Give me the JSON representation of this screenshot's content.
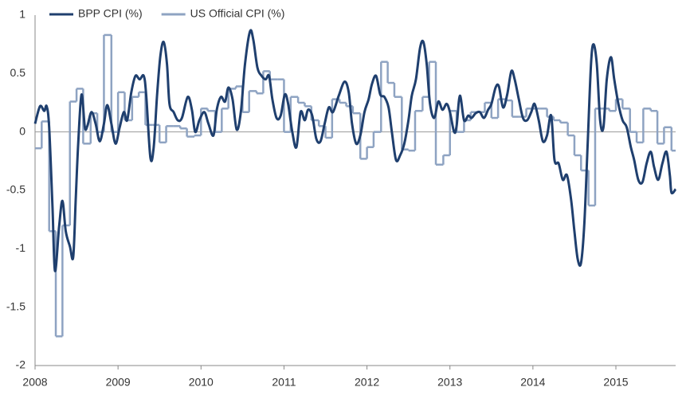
{
  "chart_data": {
    "type": "line",
    "legend": "top-left",
    "zero_line": true,
    "xlim": [
      2008,
      2015.72
    ],
    "xticks": [
      2008,
      2009,
      2010,
      2011,
      2012,
      2013,
      2014,
      2015
    ],
    "ylim": [
      -2,
      1
    ],
    "yticks": [
      -2,
      -1.5,
      -1,
      -0.5,
      0,
      0.5,
      1
    ],
    "series": [
      {
        "name": "BPP CPI (%)",
        "color": "#1f3f6e",
        "style": "smooth",
        "x": [
          2008,
          2008.06,
          2008.11,
          2008.14,
          2008.17,
          2008.21,
          2008.24,
          2008.29,
          2008.33,
          2008.37,
          2008.42,
          2008.46,
          2008.49,
          2008.52,
          2008.56,
          2008.6,
          2008.63,
          2008.68,
          2008.73,
          2008.78,
          2008.83,
          2008.87,
          2008.92,
          2008.97,
          2009.02,
          2009.07,
          2009.11,
          2009.16,
          2009.21,
          2009.26,
          2009.31,
          2009.34,
          2009.39,
          2009.43,
          2009.47,
          2009.51,
          2009.55,
          2009.59,
          2009.62,
          2009.67,
          2009.72,
          2009.77,
          2009.84,
          2009.89,
          2009.93,
          2009.98,
          2010.04,
          2010.09,
          2010.15,
          2010.19,
          2010.24,
          2010.29,
          2010.33,
          2010.38,
          2010.43,
          2010.48,
          2010.53,
          2010.59,
          2010.63,
          2010.68,
          2010.73,
          2010.78,
          2010.82,
          2010.86,
          2010.91,
          2010.96,
          2011.01,
          2011.05,
          2011.1,
          2011.15,
          2011.2,
          2011.25,
          2011.29,
          2011.34,
          2011.39,
          2011.44,
          2011.49,
          2011.54,
          2011.59,
          2011.66,
          2011.73,
          2011.78,
          2011.82,
          2011.87,
          2011.92,
          2011.97,
          2012.02,
          2012.06,
          2012.11,
          2012.16,
          2012.21,
          2012.26,
          2012.3,
          2012.35,
          2012.4,
          2012.45,
          2012.5,
          2012.54,
          2012.59,
          2012.64,
          2012.68,
          2012.72,
          2012.76,
          2012.81,
          2012.86,
          2012.91,
          2012.96,
          2013,
          2013.05,
          2013.08,
          2013.12,
          2013.17,
          2013.22,
          2013.26,
          2013.31,
          2013.36,
          2013.41,
          2013.46,
          2013.5,
          2013.55,
          2013.59,
          2013.64,
          2013.69,
          2013.74,
          2013.78,
          2013.83,
          2013.88,
          2013.93,
          2013.98,
          2014.02,
          2014.07,
          2014.12,
          2014.17,
          2014.22,
          2014.26,
          2014.31,
          2014.36,
          2014.41,
          2014.46,
          2014.5,
          2014.54,
          2014.58,
          2014.62,
          2014.66,
          2014.7,
          2014.73,
          2014.77,
          2014.81,
          2014.85,
          2014.89,
          2014.94,
          2014.98,
          2015.03,
          2015.08,
          2015.13,
          2015.18,
          2015.22,
          2015.27,
          2015.32,
          2015.37,
          2015.42,
          2015.46,
          2015.51,
          2015.56,
          2015.61,
          2015.65,
          2015.67,
          2015.72
        ],
        "values": [
          0.07,
          0.22,
          0.18,
          0.22,
          0.04,
          -0.64,
          -1.19,
          -0.81,
          -0.59,
          -0.85,
          -0.98,
          -1.07,
          -0.58,
          -0.1,
          0.32,
          0.04,
          0.05,
          0.17,
          0.07,
          -0.08,
          0.07,
          0.23,
          0.07,
          -0.1,
          0.04,
          0.17,
          0.1,
          0.34,
          0.48,
          0.45,
          0.48,
          0.31,
          -0.22,
          -0.13,
          0.31,
          0.65,
          0.77,
          0.58,
          0.24,
          0.17,
          0.1,
          0.12,
          0.3,
          0.19,
          0.0,
          0.1,
          0.17,
          0.07,
          -0.03,
          0.19,
          0.3,
          0.26,
          0.38,
          0.28,
          0.02,
          0.17,
          0.58,
          0.86,
          0.79,
          0.55,
          0.48,
          0.45,
          0.48,
          0.28,
          0.12,
          0.14,
          0.32,
          0.24,
          0.0,
          -0.13,
          0.17,
          0.1,
          0.19,
          0.14,
          -0.06,
          -0.08,
          0.07,
          0.21,
          0.17,
          0.31,
          0.43,
          0.34,
          0.07,
          -0.1,
          -0.03,
          0.17,
          0.28,
          0.41,
          0.48,
          0.32,
          0.3,
          0.21,
          0.0,
          -0.24,
          -0.2,
          -0.1,
          0.1,
          0.31,
          0.45,
          0.72,
          0.77,
          0.58,
          0.24,
          0.12,
          0.26,
          0.19,
          0.24,
          0.17,
          0.0,
          0.05,
          0.31,
          0.1,
          0.14,
          0.12,
          0.16,
          0.17,
          0.12,
          0.19,
          0.24,
          0.38,
          0.39,
          0.21,
          0.32,
          0.52,
          0.45,
          0.28,
          0.12,
          0.1,
          0.17,
          0.24,
          0.1,
          -0.08,
          -0.03,
          0.14,
          -0.24,
          -0.27,
          -0.41,
          -0.37,
          -0.58,
          -0.85,
          -1.09,
          -1.12,
          -0.78,
          -0.1,
          0.58,
          0.75,
          0.58,
          0.1,
          0.04,
          0.45,
          0.64,
          0.45,
          0.24,
          0.1,
          0.04,
          -0.13,
          -0.24,
          -0.41,
          -0.43,
          -0.27,
          -0.17,
          -0.3,
          -0.41,
          -0.27,
          -0.17,
          -0.37,
          -0.52,
          -0.49
        ]
      },
      {
        "name": "US Official CPI (%)",
        "color": "#8ea3c2",
        "style": "step",
        "x": [
          2008,
          2008.08,
          2008.17,
          2008.25,
          2008.33,
          2008.42,
          2008.5,
          2008.58,
          2008.67,
          2008.75,
          2008.83,
          2008.92,
          2009,
          2009.08,
          2009.17,
          2009.25,
          2009.33,
          2009.42,
          2009.5,
          2009.58,
          2009.67,
          2009.75,
          2009.83,
          2009.92,
          2010,
          2010.08,
          2010.17,
          2010.25,
          2010.33,
          2010.42,
          2010.5,
          2010.58,
          2010.67,
          2010.75,
          2010.83,
          2010.92,
          2011,
          2011.08,
          2011.17,
          2011.25,
          2011.33,
          2011.42,
          2011.5,
          2011.58,
          2011.67,
          2011.75,
          2011.83,
          2011.92,
          2012,
          2012.08,
          2012.17,
          2012.25,
          2012.33,
          2012.42,
          2012.5,
          2012.58,
          2012.67,
          2012.75,
          2012.83,
          2012.92,
          2013,
          2013.08,
          2013.17,
          2013.25,
          2013.33,
          2013.42,
          2013.5,
          2013.58,
          2013.67,
          2013.75,
          2013.83,
          2013.92,
          2014,
          2014.08,
          2014.17,
          2014.25,
          2014.33,
          2014.42,
          2014.5,
          2014.58,
          2014.67,
          2014.75,
          2014.83,
          2014.92,
          2015,
          2015.08,
          2015.17,
          2015.25,
          2015.33,
          2015.42,
          2015.5,
          2015.58,
          2015.67
        ],
        "values": [
          -0.14,
          0.09,
          -0.85,
          -1.75,
          -0.8,
          0.26,
          0.37,
          -0.1,
          0.16,
          0.0,
          0.83,
          0.0,
          0.34,
          0.1,
          0.3,
          0.34,
          0.06,
          0.06,
          -0.09,
          0.05,
          0.05,
          0.03,
          -0.04,
          -0.03,
          0.2,
          0.18,
          0.0,
          0.2,
          0.37,
          0.39,
          0.17,
          0.35,
          0.33,
          0.52,
          0.45,
          0.45,
          0.0,
          0.3,
          0.25,
          0.22,
          0.1,
          0.05,
          -0.05,
          0.28,
          0.25,
          0.22,
          0.16,
          -0.23,
          -0.13,
          0.0,
          0.6,
          0.42,
          0.3,
          -0.15,
          -0.16,
          0.18,
          0.3,
          0.6,
          -0.28,
          -0.2,
          0.18,
          0.0,
          0.1,
          0.17,
          0.17,
          0.25,
          0.12,
          0.28,
          0.27,
          0.13,
          0.13,
          0.2,
          0.2,
          0.2,
          0.13,
          0.1,
          0.08,
          -0.03,
          -0.2,
          -0.33,
          -0.63,
          0.2,
          0.2,
          0.18,
          0.28,
          0.2,
          0.0,
          -0.09,
          0.2,
          0.18,
          -0.1,
          0.04,
          -0.16
        ]
      }
    ]
  }
}
